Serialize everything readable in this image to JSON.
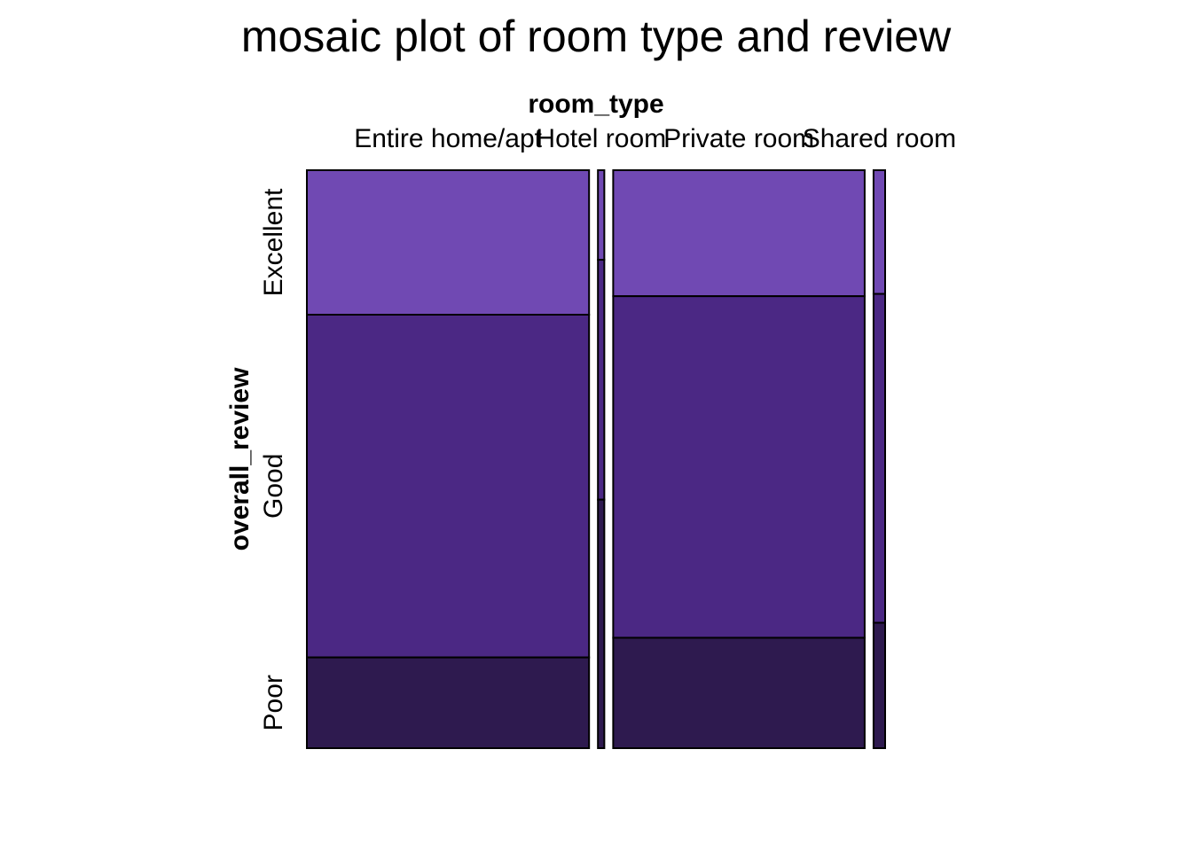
{
  "chart_data": {
    "type": "mosaic",
    "title": "mosaic plot of room type and review",
    "xlabel": "room_type",
    "ylabel": "overall_review",
    "x_categories": [
      "Entire home/apt",
      "Hotel room",
      "Private room",
      "Shared room"
    ],
    "y_categories": [
      "Excellent",
      "Good",
      "Poor"
    ],
    "x_proportions": [
      0.487,
      0.011,
      0.434,
      0.02
    ],
    "y_proportions": [
      [
        0.25,
        0.593,
        0.157
      ],
      [
        0.155,
        0.415,
        0.43
      ],
      [
        0.218,
        0.591,
        0.191
      ],
      [
        0.214,
        0.569,
        0.217
      ]
    ],
    "colors": {
      "Excellent": "#7049b3",
      "Good": "#4b2884",
      "Poor": "#2e1a4f"
    }
  }
}
